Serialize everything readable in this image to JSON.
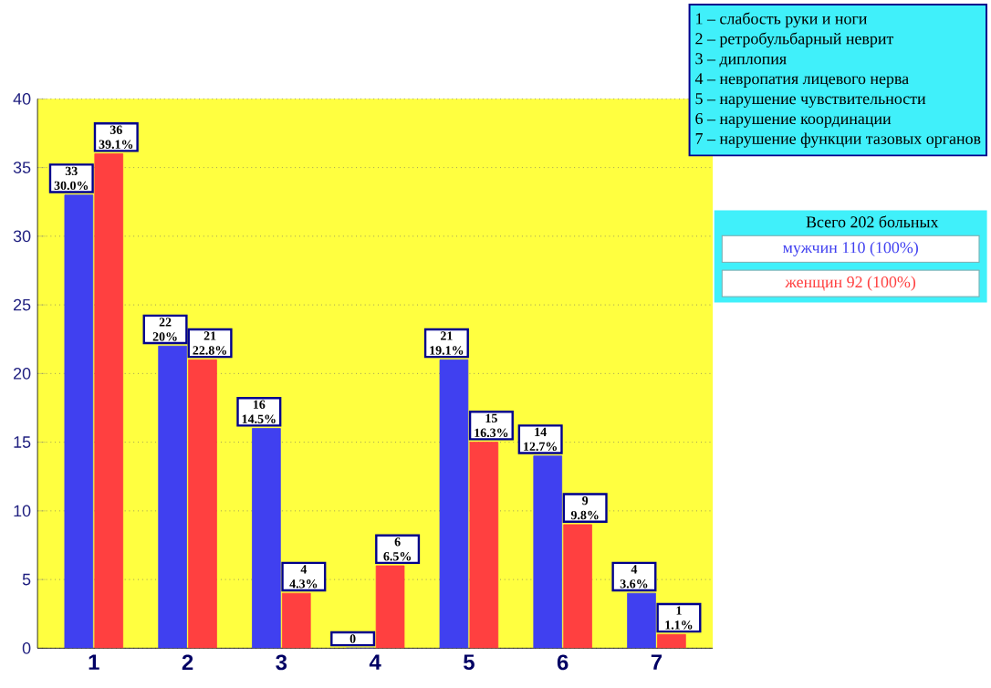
{
  "chart_data": {
    "type": "bar",
    "categories": [
      "1",
      "2",
      "3",
      "4",
      "5",
      "6",
      "7"
    ],
    "series": [
      {
        "name": "мужчин 110 (100%)",
        "color": "#4040f0",
        "values": [
          33,
          22,
          16,
          0,
          21,
          14,
          4
        ],
        "value_labels": [
          "33 30.0%",
          "22 20%",
          "16 14.5%",
          "0",
          "21 19.1%",
          "14 12.7%",
          "4 3.6%"
        ]
      },
      {
        "name": "женщин 92 (100%)",
        "color": "#ff4040",
        "values": [
          36,
          21,
          4,
          6,
          15,
          9,
          1
        ],
        "value_labels": [
          "36 39.1%",
          "21 22.8%",
          "4 4.3%",
          "6 6.5%",
          "15 16.3%",
          "9 9.8%",
          "1 1.1%"
        ]
      }
    ],
    "legend_title": "Всего 202 больных",
    "legend": "top right",
    "ylim": [
      0,
      40
    ],
    "yticks": [
      0,
      5,
      10,
      15,
      20,
      25,
      30,
      35,
      40
    ],
    "grid": "y",
    "annotations": [
      "1 – слабость руки и ноги",
      "2 – ретробульбарный неврит",
      "3 – диплопия",
      "4 – невропатия лицевого нерва",
      "5 – нарушение чувствительности",
      "6 – нарушение координации",
      "7 – нарушение функции тазовых органов"
    ]
  }
}
